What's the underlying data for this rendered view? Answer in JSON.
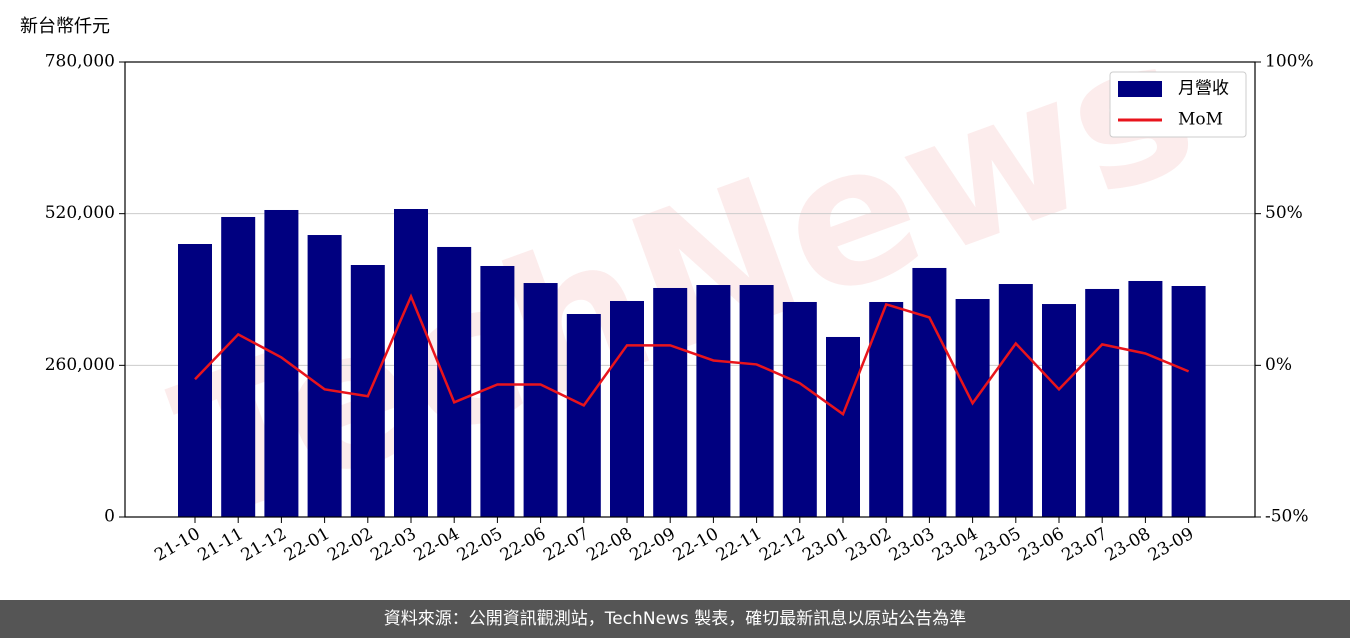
{
  "chart_data": {
    "type": "bar",
    "ylabel": "新台幣仟元",
    "watermark": "TechNews",
    "categories": [
      "21-10",
      "21-11",
      "21-12",
      "22-01",
      "22-02",
      "22-03",
      "22-04",
      "22-05",
      "22-06",
      "22-07",
      "22-08",
      "22-09",
      "22-10",
      "22-11",
      "22-12",
      "23-01",
      "23-02",
      "23-03",
      "23-04",
      "23-05",
      "23-06",
      "23-07",
      "23-08",
      "23-09"
    ],
    "series": [
      {
        "name": "月營收",
        "type": "bar",
        "color": "#000080",
        "values": [
          468000,
          514300,
          526300,
          483400,
          432000,
          528000,
          462900,
          430300,
          401100,
          348000,
          370300,
          392600,
          397700,
          397700,
          368600,
          308600,
          368600,
          426900,
          373700,
          399400,
          365100,
          390900,
          404600,
          396000
        ]
      },
      {
        "name": "MoM",
        "type": "line",
        "axis": "y2",
        "color": "#e8141c",
        "values": [
          -4.6,
          10.2,
          2.6,
          -7.9,
          -10.2,
          22.7,
          -12.2,
          -6.3,
          -6.3,
          -13.2,
          6.6,
          6.6,
          1.6,
          0.3,
          -5.9,
          -16.1,
          20.1,
          15.8,
          -12.5,
          7.2,
          -7.9,
          6.9,
          3.9,
          -2.0
        ]
      }
    ],
    "ylim": [
      0,
      780000
    ],
    "yticks": [
      0,
      {
        "value": 260000,
        "label": "260,000"
      },
      {
        "value": 520000,
        "label": "520,000"
      },
      {
        "value": 780000,
        "label": "780,000"
      }
    ],
    "y2lim": [
      -50,
      100
    ],
    "y2ticks": [
      {
        "value": -50,
        "label": "-50%"
      },
      {
        "value": 0,
        "label": "0%"
      },
      {
        "value": 50,
        "label": "50%"
      },
      {
        "value": 100,
        "label": "100%"
      }
    ],
    "grid": true,
    "legend": "upper right"
  },
  "footer": "資料來源：公開資訊觀測站，TechNews 製表，確切最新訊息以原站公告為準"
}
